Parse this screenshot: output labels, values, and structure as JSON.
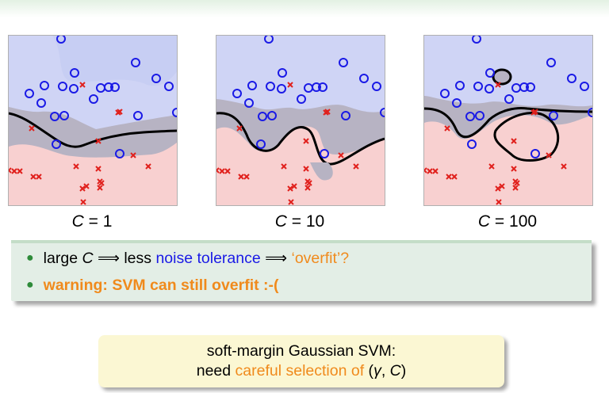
{
  "panels": [
    {
      "caption_var": "C",
      "caption_rest": " = 1"
    },
    {
      "caption_var": "C",
      "caption_rest": " = 10"
    },
    {
      "caption_var": "C",
      "caption_rest": " = 100"
    }
  ],
  "colors": {
    "positive_region": "#cfd4f5",
    "negative_region": "#f8d0d0",
    "margin_region": "#b7b3c3",
    "circle": "#1a1ae6",
    "cross": "#e0201c",
    "bullet": "#2e8b3a",
    "highlight": "#f08a1c"
  },
  "bullets": [
    {
      "p1": "large ",
      "var": "C",
      "p2": " ⟹ less ",
      "blue": "noise tolerance",
      "p3": " ⟹ ",
      "orange": "‘overfit’?"
    },
    {
      "warn": "warning: SVM can still overfit :-("
    }
  ],
  "summary": {
    "line1": "soft-margin Gaussian SVM:",
    "line2_prefix": "need ",
    "line2_highlight": "careful selection of",
    "line2_open": " (",
    "gamma": "γ",
    "comma": ", ",
    "var": "C",
    "close": ")"
  }
}
